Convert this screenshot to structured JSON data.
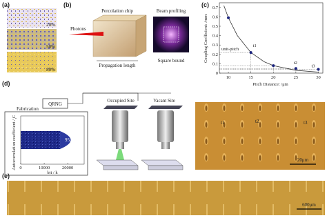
{
  "panel_a": {
    "label": "(a)",
    "fractions": [
      "20%",
      "50%",
      "80%"
    ]
  },
  "panel_b": {
    "label": "(b)",
    "chip_title": "Percolation chip",
    "beam_title": "Beam profiling",
    "photons": "Photons",
    "propagation": "Propagation length",
    "square_bound": "Square bound"
  },
  "chart_data": {
    "type": "scatter",
    "label": "(c)",
    "xlabel": "Pitch Distance: /μm",
    "ylabel": "Coupling Coefficient: /mm",
    "x": [
      10,
      15,
      20,
      25,
      30
    ],
    "values": [
      0.59,
      0.22,
      0.08,
      0.05,
      0.04
    ],
    "color": "#1a237e",
    "fit": {
      "x": [
        9,
        10,
        12,
        15,
        18,
        20,
        25,
        30
      ],
      "values": [
        0.72,
        0.59,
        0.4,
        0.22,
        0.12,
        0.08,
        0.03,
        0.011
      ],
      "color": "#333333"
    },
    "xlim": [
      8,
      31
    ],
    "ylim": [
      0,
      0.75
    ],
    "xticks": [
      10,
      15,
      20,
      25,
      30
    ],
    "yticks": [
      0,
      0.1,
      0.2,
      0.3,
      0.4,
      0.5,
      0.6,
      0.7
    ],
    "annotations": {
      "unit_pitch": "unit-pitch",
      "t1": "t1",
      "t2": "t2",
      "t3": "t3"
    }
  },
  "panel_d": {
    "label": "(d)",
    "fabrication": "Fabrication",
    "qrng": "QRNG",
    "occupied": "Occupied Site",
    "vacant": "Vacant Site",
    "inset": {
      "ylabel": "Autocorrelation coefficient / C",
      "ylabel_sub": "t",
      "xlabel": "bit / k",
      "xticks": [
        0,
        10000,
        20000
      ],
      "xlim": [
        0,
        27000
      ],
      "percent": "95.62%"
    },
    "micrograph": {
      "t1": "t1",
      "t2": "t2",
      "t3": "t3",
      "scale": "20μm"
    }
  },
  "panel_e": {
    "label": "(e)",
    "scale": "600μm"
  }
}
